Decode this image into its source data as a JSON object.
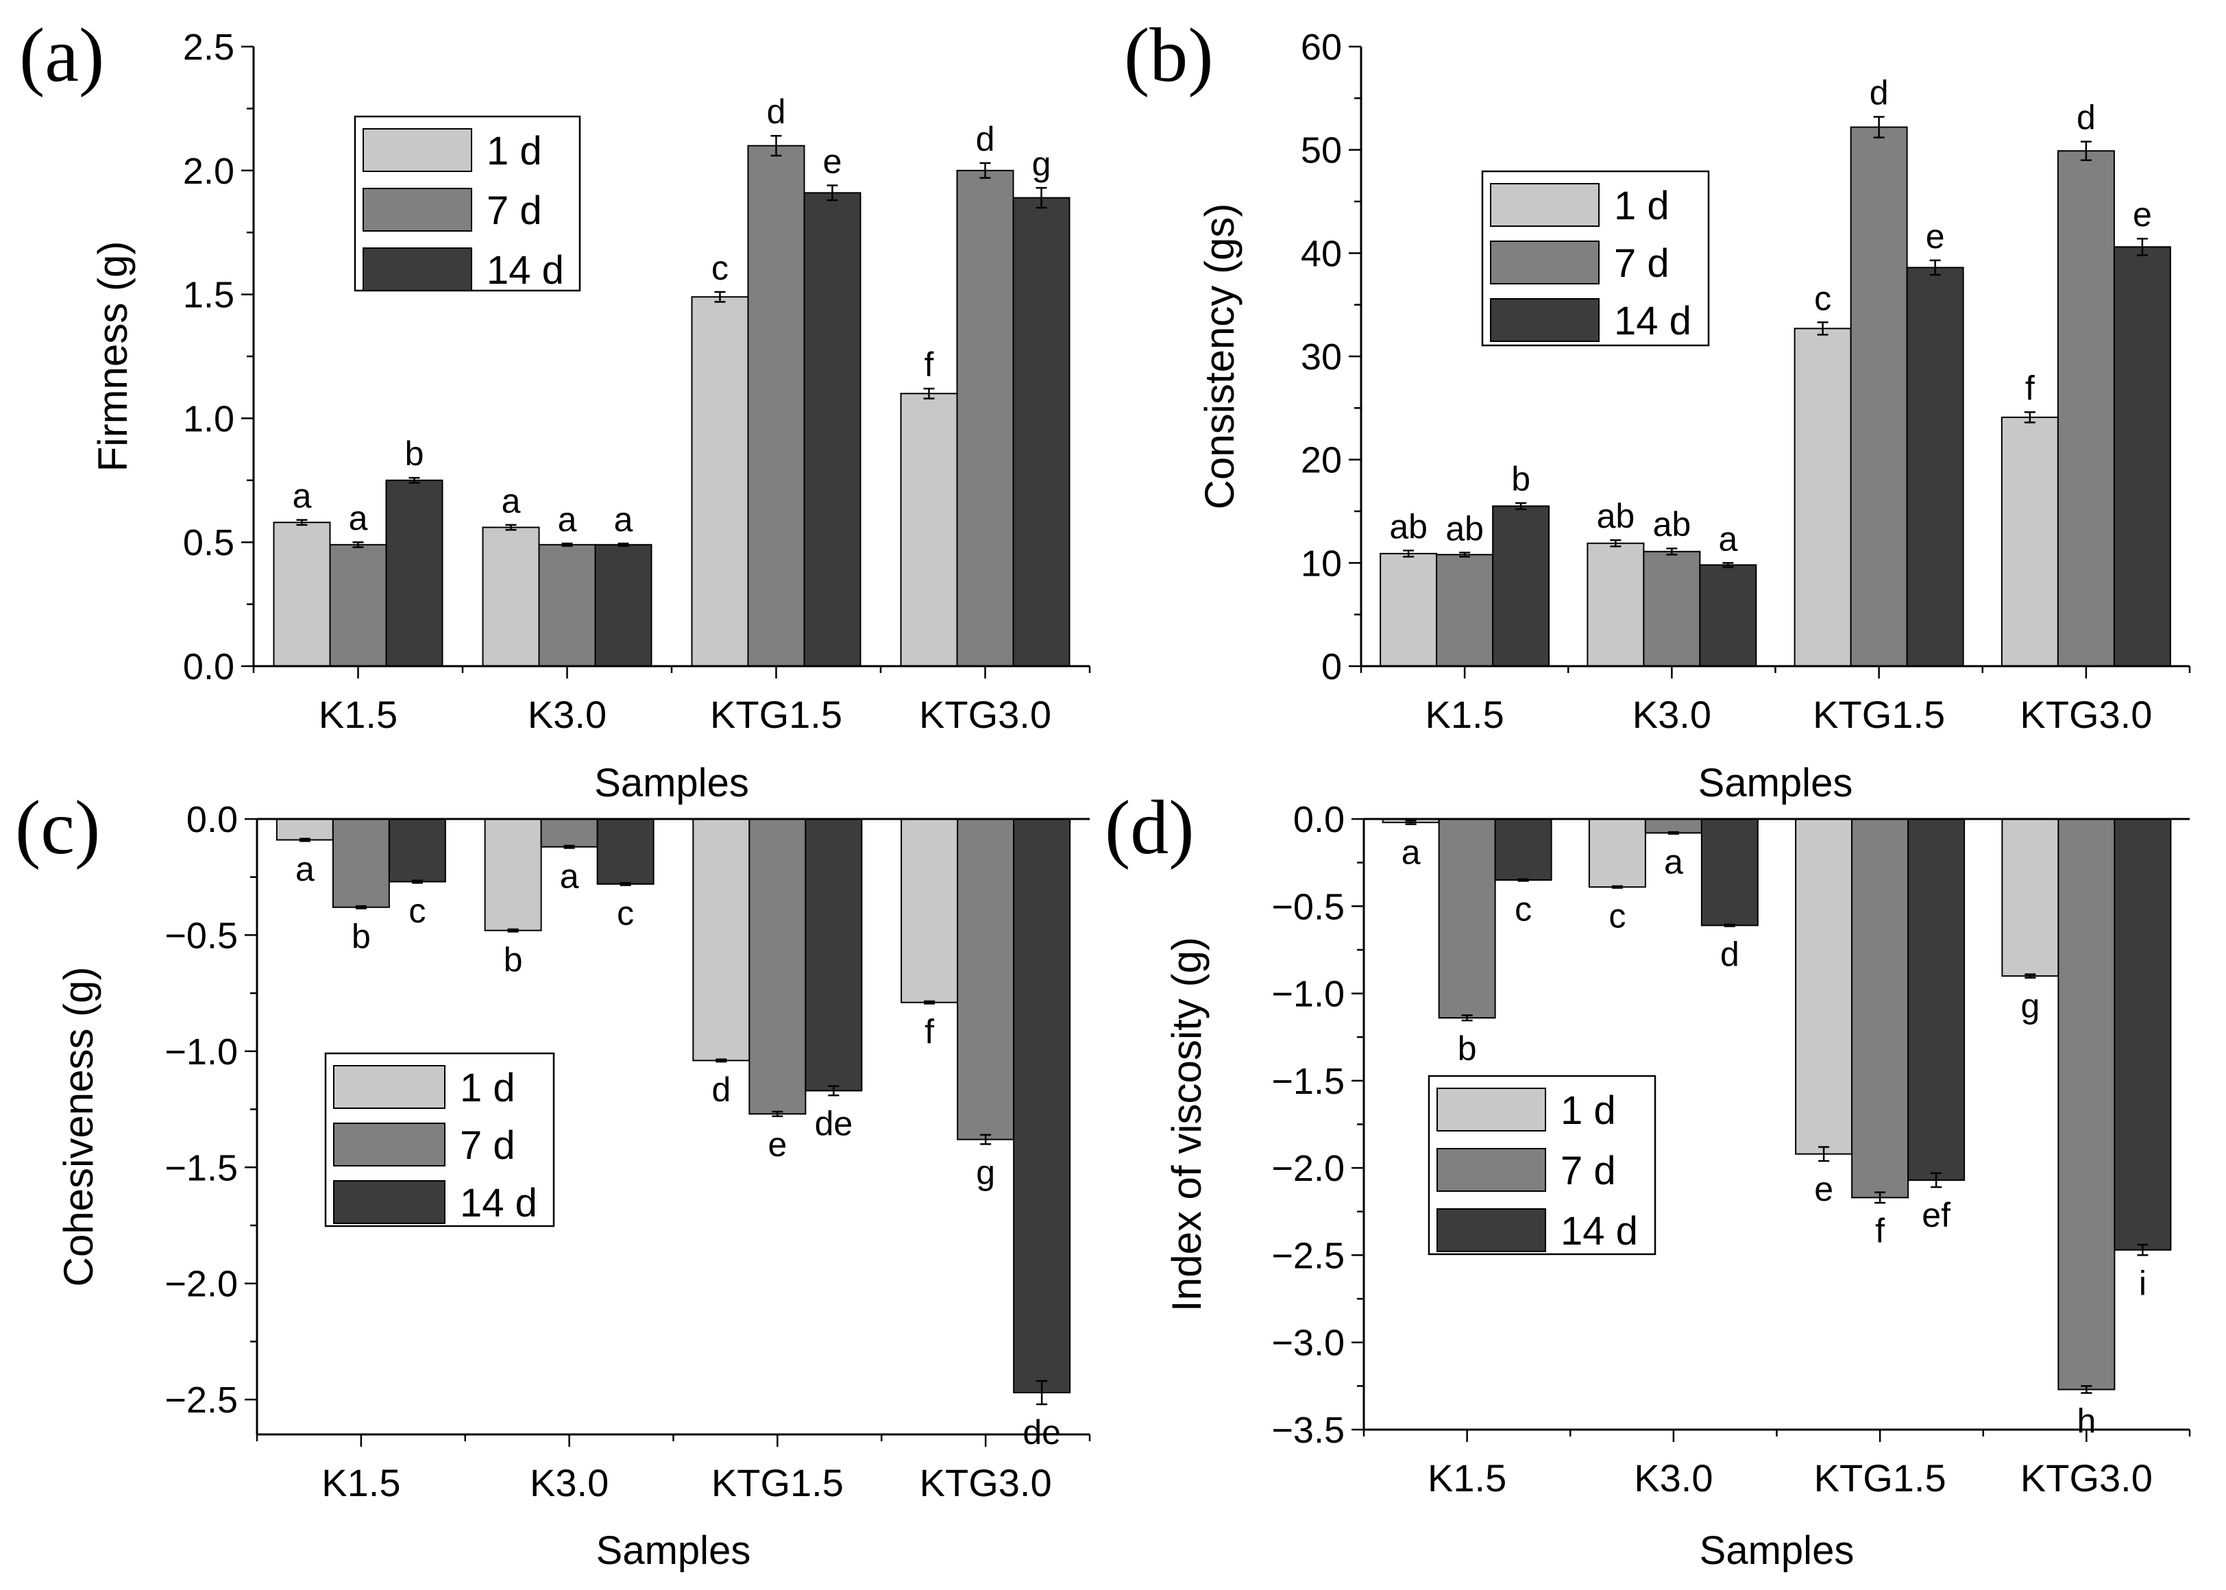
{
  "figure": {
    "sample_axis_label": "Samples",
    "legend_labels": [
      "1 d",
      "7 d",
      "14 d"
    ],
    "series_colors": [
      "#c8c8c8",
      "#808080",
      "#3c3c3c"
    ],
    "sample_names": [
      "K1.5",
      "K3.0",
      "KTG1.5",
      "KTG3.0"
    ]
  },
  "chart_data": [
    {
      "panel": "(a)",
      "type": "bar",
      "title": "",
      "xlabel": "Samples",
      "ylabel": "Firmness (g)",
      "ylim": [
        0,
        2.5
      ],
      "yticks": [
        "0.0",
        "0.5",
        "1.0",
        "1.5",
        "2.0",
        "2.5"
      ],
      "categories": [
        "K1.5",
        "K3.0",
        "KTG1.5",
        "KTG3.0"
      ],
      "legend_position": "top-left",
      "series": [
        {
          "name": "1 d",
          "values": [
            0.58,
            0.56,
            1.49,
            1.1
          ],
          "errors": [
            0.01,
            0.01,
            0.02,
            0.02
          ],
          "labels": [
            "a",
            "a",
            "c",
            "f"
          ]
        },
        {
          "name": "7 d",
          "values": [
            0.49,
            0.49,
            2.1,
            2.0
          ],
          "errors": [
            0.01,
            0.005,
            0.04,
            0.03
          ],
          "labels": [
            "a",
            "a",
            "d",
            "d"
          ]
        },
        {
          "name": "14 d",
          "values": [
            0.75,
            0.49,
            1.91,
            1.89
          ],
          "errors": [
            0.01,
            0.005,
            0.03,
            0.04
          ],
          "labels": [
            "b",
            "a",
            "e",
            "g"
          ]
        }
      ]
    },
    {
      "panel": "(b)",
      "type": "bar",
      "title": "",
      "xlabel": "Samples",
      "ylabel": "Consistency (gs)",
      "ylim": [
        0,
        60
      ],
      "yticks": [
        "0",
        "10",
        "20",
        "30",
        "40",
        "50",
        "60"
      ],
      "categories": [
        "K1.5",
        "K3.0",
        "KTG1.5",
        "KTG3.0"
      ],
      "legend_position": "upper-left",
      "series": [
        {
          "name": "1 d",
          "values": [
            10.9,
            11.9,
            32.7,
            24.1
          ],
          "errors": [
            0.3,
            0.3,
            0.6,
            0.5
          ],
          "labels": [
            "ab",
            "ab",
            "c",
            "f"
          ]
        },
        {
          "name": "7 d",
          "values": [
            10.8,
            11.1,
            52.2,
            49.9
          ],
          "errors": [
            0.2,
            0.3,
            1.0,
            0.9
          ],
          "labels": [
            "ab",
            "ab",
            "d",
            "d"
          ]
        },
        {
          "name": "14 d",
          "values": [
            15.5,
            9.8,
            38.6,
            40.6
          ],
          "errors": [
            0.3,
            0.2,
            0.7,
            0.8
          ],
          "labels": [
            "b",
            "a",
            "e",
            "e"
          ]
        }
      ]
    },
    {
      "panel": "(c)",
      "type": "bar",
      "title": "",
      "xlabel": "Samples",
      "ylabel": "Cohesiveness (g)",
      "ylim": [
        -2.65,
        0.0
      ],
      "yticks": [
        "−2.5",
        "−2.0",
        "−1.5",
        "−1.0",
        "−0.5",
        "0.0"
      ],
      "categories": [
        "K1.5",
        "K3.0",
        "KTG1.5",
        "KTG3.0"
      ],
      "legend_position": "center-left",
      "series": [
        {
          "name": "1 d",
          "values": [
            -0.09,
            -0.48,
            -1.04,
            -0.79
          ],
          "errors": [
            0.005,
            0.005,
            0.005,
            0.005
          ],
          "labels": [
            "a",
            "b",
            "d",
            "f"
          ]
        },
        {
          "name": "7 d",
          "values": [
            -0.38,
            -0.12,
            -1.27,
            -1.38
          ],
          "errors": [
            0.005,
            0.005,
            0.01,
            0.02
          ],
          "labels": [
            "b",
            "a",
            "e",
            "g"
          ]
        },
        {
          "name": "14 d",
          "values": [
            -0.27,
            -0.28,
            -1.17,
            -2.47
          ],
          "errors": [
            0.005,
            0.005,
            0.02,
            0.05
          ],
          "labels": [
            "c",
            "c",
            "de",
            "de"
          ]
        }
      ]
    },
    {
      "panel": "(d)",
      "type": "bar",
      "title": "",
      "xlabel": "Samples",
      "ylabel": "Index of viscosity (g)",
      "ylim": [
        -3.5,
        0.0
      ],
      "yticks": [
        "−3.5",
        "−3.0",
        "−2.5",
        "−2.0",
        "−1.5",
        "−1.0",
        "−0.5",
        "0.0"
      ],
      "categories": [
        "K1.5",
        "K3.0",
        "KTG1.5",
        "KTG3.0"
      ],
      "legend_position": "center-left",
      "series": [
        {
          "name": "1 d",
          "values": [
            -0.02,
            -0.39,
            -1.92,
            -0.9
          ],
          "errors": [
            0.01,
            0.005,
            0.04,
            0.01
          ],
          "labels": [
            "a",
            "c",
            "e",
            "g"
          ]
        },
        {
          "name": "7 d",
          "values": [
            -1.14,
            -0.08,
            -2.17,
            -3.27
          ],
          "errors": [
            0.015,
            0.005,
            0.03,
            0.02
          ],
          "labels": [
            "b",
            "a",
            "f",
            "h"
          ]
        },
        {
          "name": "14 d",
          "values": [
            -0.35,
            -0.61,
            -2.07,
            -2.47
          ],
          "errors": [
            0.005,
            0.005,
            0.04,
            0.03
          ],
          "labels": [
            "c",
            "d",
            "ef",
            "i"
          ]
        }
      ]
    }
  ]
}
